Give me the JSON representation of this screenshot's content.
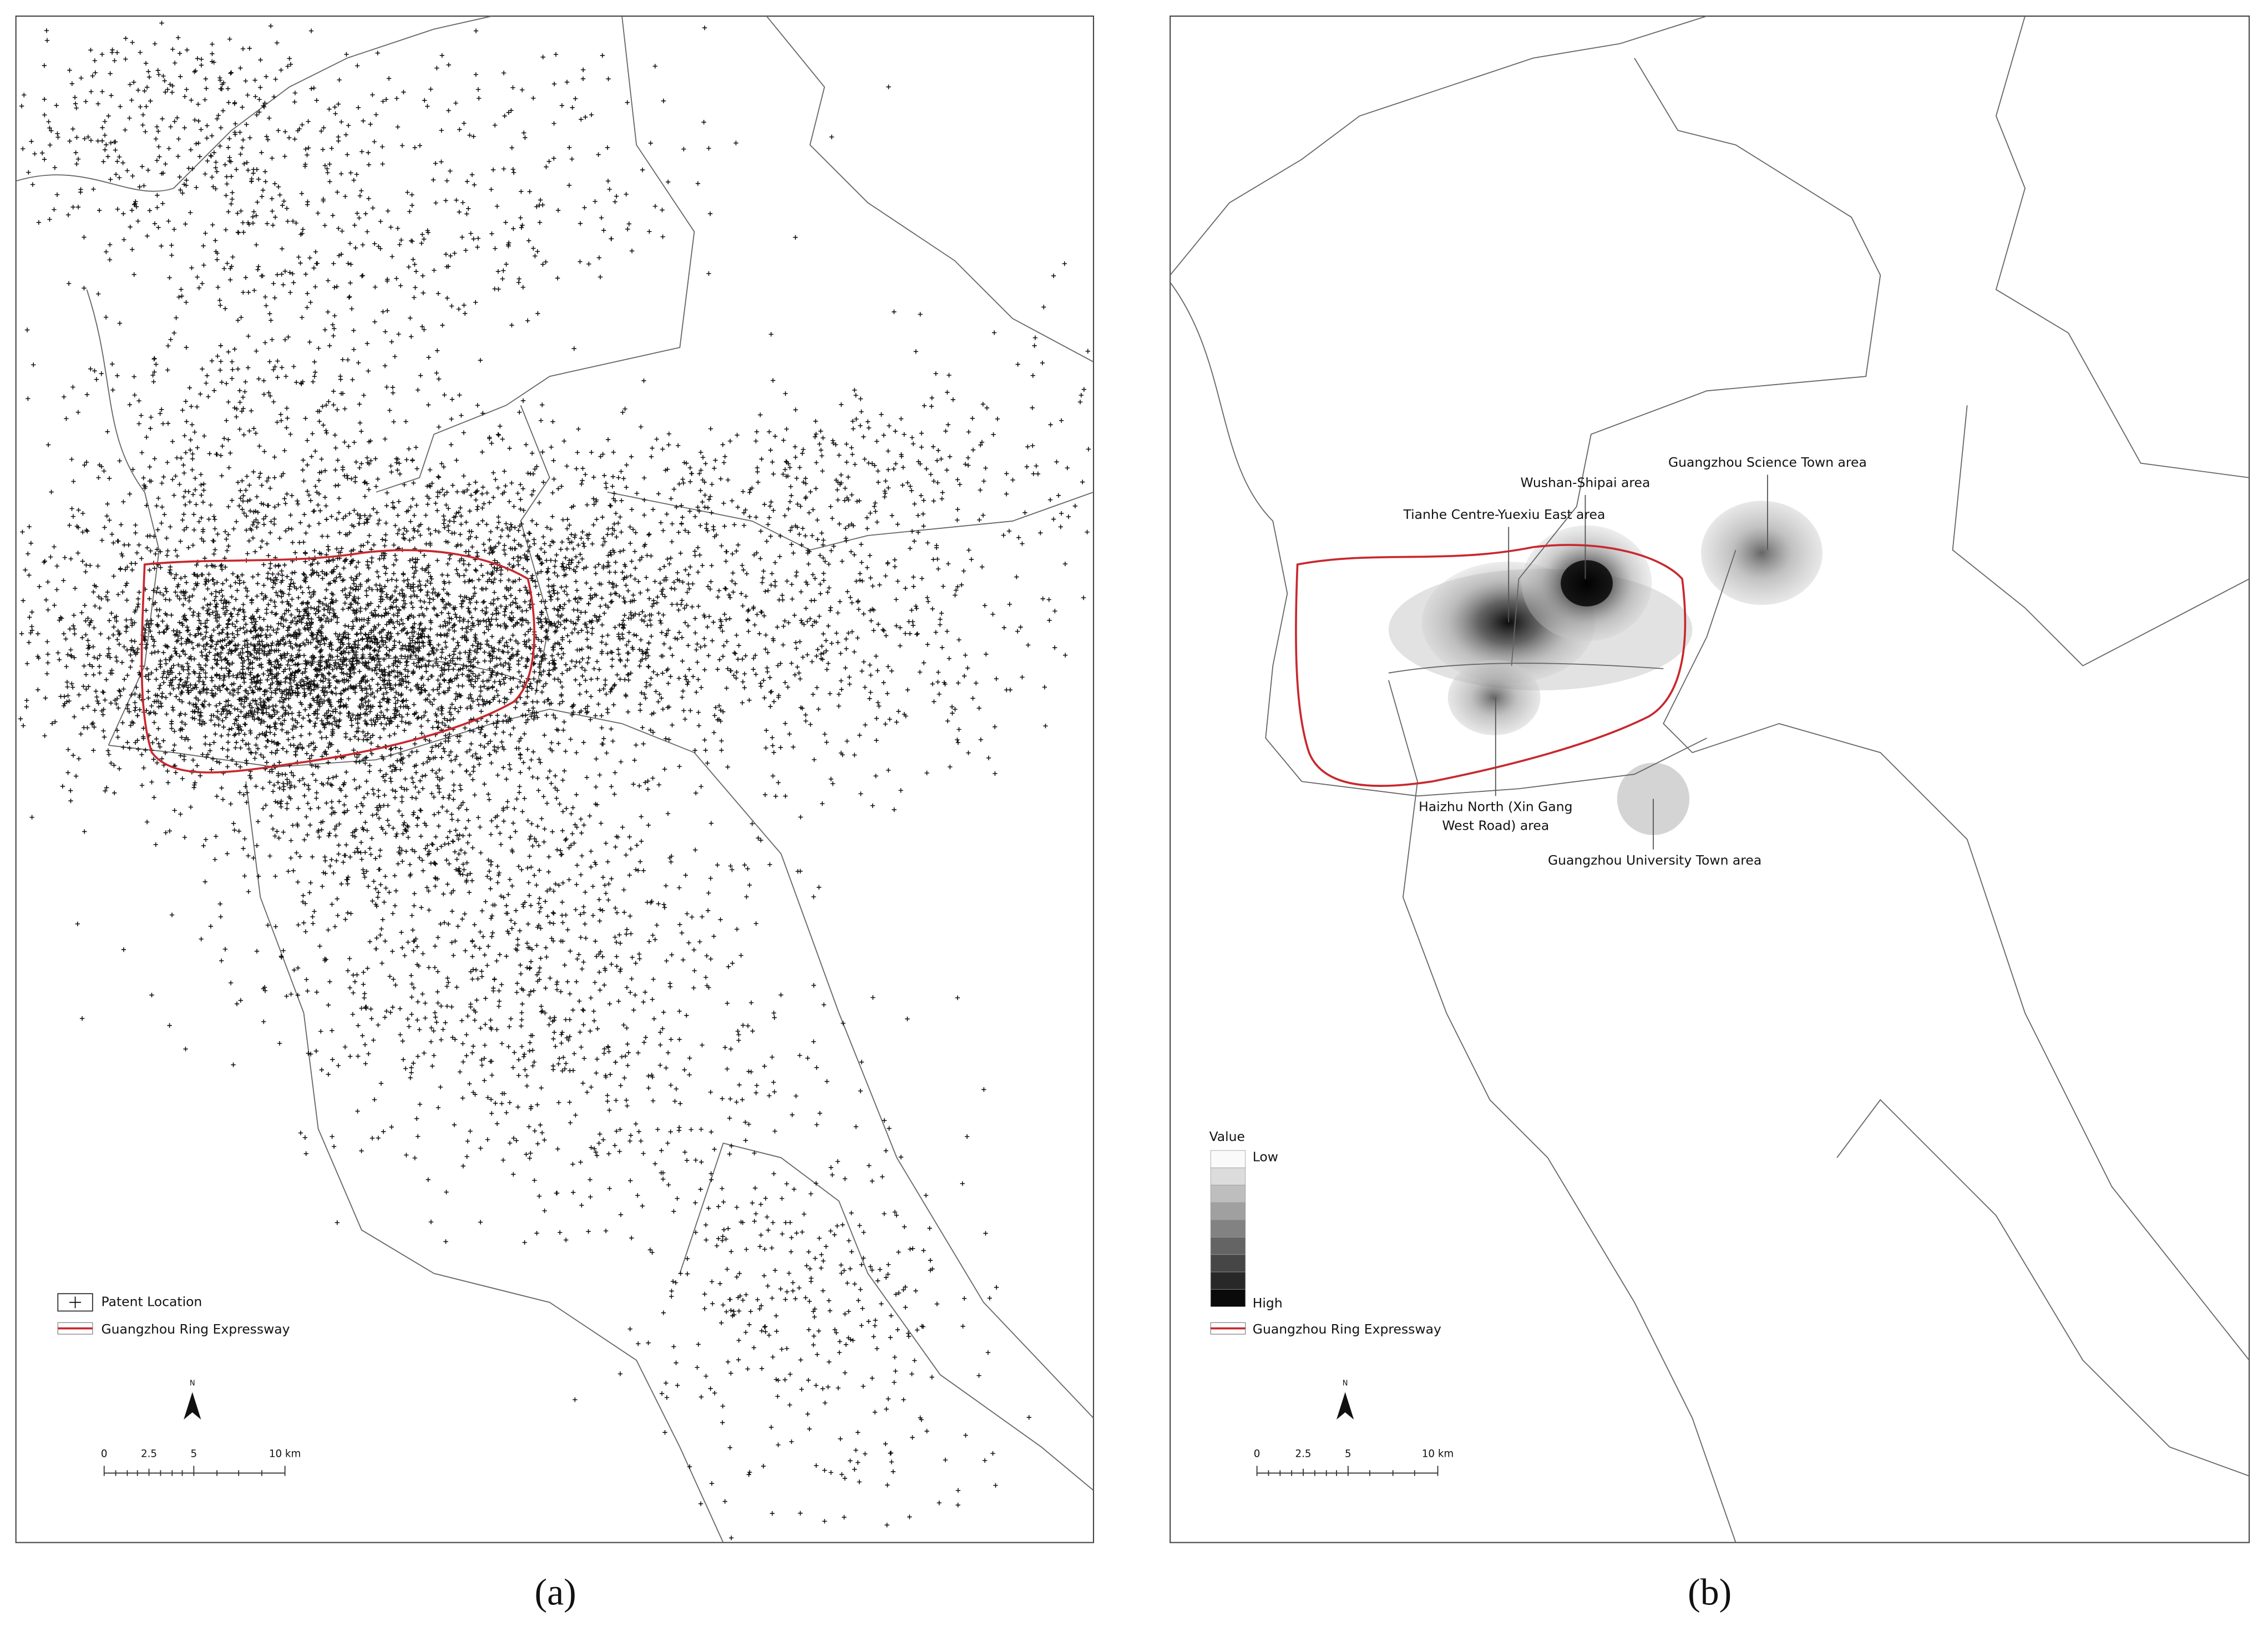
{
  "panels": [
    {
      "caption": "(a)",
      "legend": {
        "items": [
          "Patent Location",
          "Guangzhou Ring Expressway"
        ]
      },
      "north": "N",
      "scale_bar": [
        "0",
        "2.5",
        "5",
        "10 km"
      ]
    },
    {
      "caption": "(b)",
      "legend": {
        "title": "Value",
        "low": "Low",
        "high": "High",
        "items": [
          "Guangzhou Ring Expressway"
        ]
      },
      "north": "N",
      "scale_bar": [
        "0",
        "2.5",
        "5",
        "10 km"
      ],
      "annotations": [
        {
          "lines": [
            "Wushan-Shipai area"
          ]
        },
        {
          "lines": [
            "Guangzhou Science Town area"
          ]
        },
        {
          "lines": [
            "Tianhe Centre-Yuexiu East area"
          ]
        },
        {
          "lines": [
            "Haizhu North (Xin Gang",
            "West Road) area"
          ]
        },
        {
          "lines": [
            "Guangzhou University Town area"
          ]
        }
      ]
    }
  ]
}
